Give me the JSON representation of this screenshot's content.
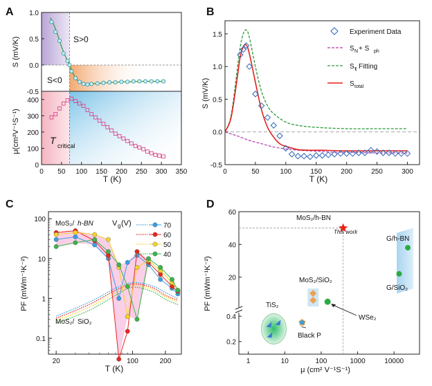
{
  "chart_data": [
    {
      "panel": "A",
      "type": "line",
      "subpanels": [
        {
          "name": "seebeck",
          "xlabel": "",
          "ylabel": "S (mV/K)",
          "xlim": [
            0,
            350
          ],
          "ylim": [
            -0.5,
            1.0
          ],
          "yticks": [
            "1.0",
            "0.5",
            "0.0",
            "-0.5"
          ],
          "region_labels": [
            "S>0",
            "S<0"
          ],
          "series": [
            {
              "name": "S data",
              "x": [
                25,
                35,
                45,
                55,
                65,
                70,
                75,
                85,
                95,
                105,
                115,
                125,
                140,
                155,
                170,
                185,
                200,
                215,
                230,
                245,
                260,
                275,
                290,
                305
              ],
              "values": [
                0.82,
                0.63,
                0.46,
                0.22,
                0.08,
                0.0,
                -0.12,
                -0.25,
                -0.32,
                -0.36,
                -0.37,
                -0.36,
                -0.35,
                -0.34,
                -0.33,
                -0.33,
                -0.32,
                -0.32,
                -0.31,
                -0.31,
                -0.31,
                -0.31,
                -0.31,
                -0.31
              ]
            },
            {
              "name": "S fit",
              "x": [
                22,
                30,
                40,
                50,
                60,
                70,
                80,
                90,
                100,
                110,
                120,
                140,
                160,
                180,
                200,
                220,
                250,
                280,
                310
              ],
              "values": [
                0.9,
                0.78,
                0.58,
                0.35,
                0.16,
                0.0,
                -0.18,
                -0.29,
                -0.34,
                -0.36,
                -0.36,
                -0.35,
                -0.34,
                -0.33,
                -0.32,
                -0.32,
                -0.31,
                -0.31,
                -0.31
              ]
            }
          ]
        },
        {
          "name": "mobility",
          "xlabel": "T (K)",
          "ylabel": "μ(cm²V⁻¹S⁻¹)",
          "xlim": [
            0,
            350
          ],
          "ylim": [
            0,
            450
          ],
          "xticks": [
            "0",
            "50",
            "100",
            "150",
            "200",
            "250",
            "300",
            "350"
          ],
          "yticks": [
            "400",
            "300",
            "200",
            "100",
            "0"
          ],
          "annotation": "Tcritical",
          "series": [
            {
              "name": "mobility",
              "x": [
                25,
                35,
                45,
                55,
                65,
                75,
                85,
                95,
                105,
                115,
                125,
                135,
                145,
                155,
                165,
                175,
                185,
                195,
                205,
                215,
                225,
                235,
                245,
                255,
                265,
                275,
                285,
                295,
                305
              ],
              "values": [
                290,
                310,
                345,
                375,
                395,
                405,
                390,
                375,
                360,
                335,
                310,
                290,
                270,
                250,
                230,
                210,
                190,
                175,
                160,
                145,
                130,
                115,
                105,
                95,
                80,
                70,
                60,
                55,
                50
              ]
            }
          ]
        }
      ]
    },
    {
      "panel": "B",
      "type": "line",
      "xlabel": "T (K)",
      "ylabel": "S (mV/K)",
      "xlim": [
        0,
        320
      ],
      "ylim": [
        -0.5,
        1.7
      ],
      "xticks": [
        "0",
        "50",
        "100",
        "150",
        "200",
        "250",
        "300"
      ],
      "yticks": [
        "1.5",
        "1.0",
        "0.5",
        "0.0",
        "-0.5"
      ],
      "legend": [
        "Experiment Data",
        "S_N + S_ph",
        "S_τ Fitting",
        "S_total"
      ],
      "series": [
        {
          "name": "Experiment Data",
          "x": [
            25,
            30,
            35,
            40,
            50,
            60,
            70,
            80,
            90,
            100,
            110,
            120,
            130,
            140,
            150,
            160,
            170,
            180,
            190,
            200,
            210,
            220,
            230,
            240,
            250,
            260,
            270,
            280,
            290,
            300
          ],
          "values": [
            1.18,
            1.26,
            1.32,
            1.0,
            0.58,
            0.4,
            0.22,
            0.1,
            -0.06,
            -0.25,
            -0.34,
            -0.37,
            -0.37,
            -0.38,
            -0.36,
            -0.36,
            -0.35,
            -0.34,
            -0.33,
            -0.33,
            -0.33,
            -0.32,
            -0.32,
            -0.28,
            -0.3,
            -0.32,
            -0.32,
            -0.33,
            -0.33,
            -0.33
          ]
        },
        {
          "name": "S_N + S_ph",
          "x": [
            0,
            20,
            40,
            60,
            80,
            100,
            120,
            140,
            160,
            180,
            200,
            240,
            280,
            300
          ],
          "values": [
            0.0,
            -0.06,
            -0.13,
            -0.18,
            -0.23,
            -0.26,
            -0.28,
            -0.29,
            -0.3,
            -0.31,
            -0.31,
            -0.32,
            -0.32,
            -0.32
          ]
        },
        {
          "name": "S_τ Fitting",
          "x": [
            0,
            10,
            20,
            25,
            30,
            35,
            40,
            50,
            60,
            70,
            80,
            100,
            120,
            150,
            200,
            250,
            300
          ],
          "values": [
            0.0,
            0.25,
            0.95,
            1.3,
            1.5,
            1.56,
            1.45,
            1.0,
            0.62,
            0.4,
            0.28,
            0.15,
            0.1,
            0.07,
            0.05,
            0.05,
            0.05
          ]
        },
        {
          "name": "S_total",
          "x": [
            0,
            10,
            20,
            25,
            30,
            35,
            40,
            50,
            60,
            70,
            80,
            90,
            100,
            120,
            140,
            160,
            200,
            250,
            300
          ],
          "values": [
            0.0,
            0.22,
            0.82,
            1.15,
            1.3,
            1.33,
            1.2,
            0.76,
            0.34,
            0.07,
            -0.08,
            -0.18,
            -0.22,
            -0.27,
            -0.28,
            -0.28,
            -0.29,
            -0.29,
            -0.29
          ]
        }
      ]
    },
    {
      "panel": "C",
      "type": "line",
      "xlabel": "T (K)",
      "ylabel": "PF (mWm⁻¹K⁻²)",
      "xscale": "log",
      "yscale": "log",
      "xlim": [
        17,
        280
      ],
      "ylim": [
        0.04,
        150
      ],
      "xticks": [
        "20",
        "100",
        "200"
      ],
      "yticks": [
        "100",
        "10",
        "1",
        "0.1"
      ],
      "annotations": [
        "MoS₂/h-BN",
        "MoS₂/SiO₂"
      ],
      "legend_title": "Vg(V)",
      "legend": [
        "70",
        "60",
        "50",
        "40"
      ],
      "colors": [
        "#3a9ee0",
        "#e8261c",
        "#f5d327",
        "#3bb34a"
      ],
      "series": [
        {
          "name": "70",
          "x": [
            20,
            30,
            45,
            60,
            75,
            90,
            110,
            140,
            180,
            230,
            260
          ],
          "values": [
            30,
            35,
            22,
            10,
            1.0,
            8,
            12,
            7,
            3,
            1.8,
            1.3
          ]
        },
        {
          "name": "60",
          "x": [
            20,
            30,
            45,
            60,
            75,
            90,
            110,
            140,
            180,
            230,
            260
          ],
          "values": [
            45,
            50,
            28,
            12,
            0.03,
            0.15,
            15,
            8,
            4,
            2,
            1.5
          ]
        },
        {
          "name": "50",
          "x": [
            20,
            30,
            45,
            60,
            75,
            90,
            110,
            140,
            180,
            230,
            260
          ],
          "values": [
            40,
            45,
            40,
            30,
            6,
            0.35,
            6,
            9,
            5,
            2.5,
            1.6
          ]
        },
        {
          "name": "40",
          "x": [
            20,
            30,
            45,
            60,
            75,
            90,
            110,
            140,
            180,
            230,
            260
          ],
          "values": [
            20,
            25,
            30,
            15,
            7,
            2,
            0.3,
            10,
            6,
            3,
            1.6
          ]
        },
        {
          "name": "70 SiO2",
          "x": [
            20,
            40,
            70,
            100,
            150,
            200,
            260
          ],
          "values": [
            0.36,
            0.8,
            1.8,
            2.5,
            2.1,
            1.4,
            1.0
          ]
        },
        {
          "name": "60 SiO2",
          "x": [
            20,
            40,
            70,
            100,
            150,
            200,
            260
          ],
          "values": [
            0.32,
            0.7,
            1.6,
            2.3,
            1.9,
            1.2,
            0.9
          ]
        },
        {
          "name": "50 SiO2",
          "x": [
            20,
            40,
            70,
            100,
            150,
            200,
            260
          ],
          "values": [
            0.28,
            0.6,
            1.4,
            2.1,
            1.7,
            1.1,
            0.8
          ]
        },
        {
          "name": "40 SiO2",
          "x": [
            20,
            40,
            70,
            100,
            150,
            200,
            260
          ],
          "values": [
            0.24,
            0.5,
            1.2,
            1.9,
            1.5,
            0.95,
            0.7
          ]
        }
      ]
    },
    {
      "panel": "D",
      "type": "scatter",
      "xlabel": "μ (cm²V⁻¹S⁻¹)",
      "ylabel": "PF (mWm⁻¹K⁻²)",
      "xscale": "log",
      "xlim": [
        0.55,
        50000
      ],
      "xticks": [
        "1",
        "10",
        "100",
        "1000",
        "10000"
      ],
      "yticks": [
        "60",
        "40",
        "20",
        "0.4",
        "0.2"
      ],
      "header": "MoS₂/h-BN",
      "points": [
        {
          "label": "This work",
          "x": 400,
          "y": 50,
          "marker": "star",
          "color": "#e8261c"
        },
        {
          "label": "TiS₂",
          "x": 5,
          "y": 0.3,
          "marker": "triangle",
          "color": "#3a7ad0"
        },
        {
          "label": "Black P",
          "x": 30,
          "y": 0.35,
          "marker": "pentagon",
          "color": "#3a9ee0"
        },
        {
          "label": "MoS₂/SiO₂",
          "x": 60,
          "y": 8,
          "marker": "diamond",
          "color": "#f0a050"
        },
        {
          "label": "WSe₂",
          "x": 150,
          "y": 5,
          "marker": "circle",
          "color": "#2eaa44"
        },
        {
          "label": "G/h-BN",
          "x": 20000,
          "y": 38,
          "marker": "circle",
          "color": "#2eaa44"
        },
        {
          "label": "G/SiO₂",
          "x": 15000,
          "y": 22,
          "marker": "circle",
          "color": "#2eaa44"
        }
      ]
    }
  ],
  "panel_letters": [
    "A",
    "B",
    "C",
    "D"
  ],
  "labels": {
    "a_s_pos": "S>0",
    "a_s_neg": "S<0",
    "a_ylabel_top": "S (mV/K)",
    "a_ylabel_bottom": "μ(cm²V⁻¹S⁻¹)",
    "a_tcrit": "T",
    "a_tcrit_sub": "critical",
    "a_xlabel": "T (K)",
    "b_xlabel": "T (K)",
    "b_ylabel": "S (mV/K)",
    "b_leg1": "Experiment Data",
    "b_leg2": "S",
    "b_leg2_sub1": "N",
    "b_leg2_mid": " + S",
    "b_leg2_sub2": "ph",
    "b_leg3": "S",
    "b_leg3_sub": "τ",
    "b_leg3_tail": "  Fitting",
    "b_leg4": "S",
    "b_leg4_sub": "total",
    "c_xlabel": "T (K)",
    "c_ylabel": "PF  (mWm⁻¹K⁻²)",
    "c_hbn_a": "MoS₂/",
    "c_hbn_b": "h-BN",
    "c_sio_a": "MoS₂/",
    "c_sio_b": "SiO₂",
    "c_vg": "V",
    "c_vg_sub": "g",
    "c_vg_tail": "(V)",
    "d_xlabel": "μ  (cm² V⁻¹S⁻¹)",
    "d_ylabel": "PF  (mWm⁻¹K⁻²)",
    "d_header": "MoS₂/h-BN",
    "d_thiswork": "This work",
    "d_tis2": "TiS₂",
    "d_blackp": "Black P",
    "d_mos2sio2": "MoS₂/SiO₂",
    "d_wse2": "WSe₂",
    "d_ghbn": "G/h-BN",
    "d_gsio2": "G/SiO₂"
  }
}
